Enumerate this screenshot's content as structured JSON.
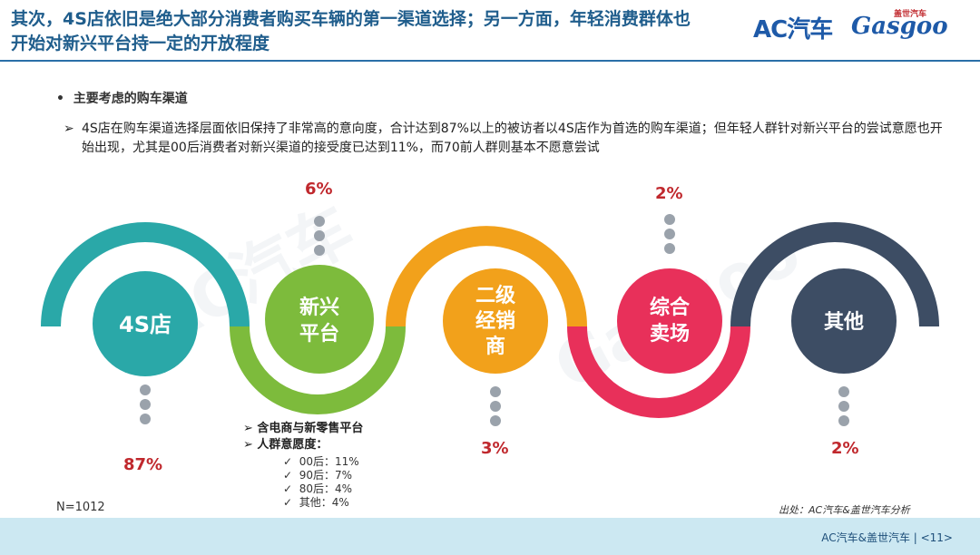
{
  "header": {
    "title": "其次，4S店依旧是绝大部分消费者购买车辆的第一渠道选择；另一方面，年轻消费群体也开始对新兴平台持一定的开放程度",
    "logo_ac": "AC汽车",
    "logo_gasgoo": "Gasgoo",
    "logo_gasgoo_cn": "盖世汽车"
  },
  "section": {
    "heading": "主要考虑的购车渠道",
    "description": "4S店在购车渠道选择层面依旧保持了非常高的意向度，合计达到87%以上的被访者以4S店作为首选的购车渠道；但年轻人群针对新兴平台的尝试意愿也开始出现，尤其是00后消费者对新兴渠道的接受度已达到11%，而70前人群则基本不愿意尝试"
  },
  "channels": [
    {
      "label": "4S店",
      "pct": "87%",
      "color": "#2aa8a8"
    },
    {
      "label": "新兴平台",
      "line1": "新兴",
      "line2": "平台",
      "pct": "6%",
      "color": "#7dbb3c"
    },
    {
      "label": "二级经销商",
      "line1": "二级",
      "line2": "经销",
      "line3": "商",
      "pct": "3%",
      "color": "#f2a11b"
    },
    {
      "label": "综合卖场",
      "line1": "综合",
      "line2": "卖场",
      "pct": "2%",
      "color": "#e8305a"
    },
    {
      "label": "其他",
      "pct": "2%",
      "color": "#3d4d64"
    }
  ],
  "emerging_notes": {
    "item1": "含电商与新零售平台",
    "item2": "人群意愿度：",
    "checks": [
      "00后：11%",
      "90后：7%",
      "80后：4%",
      "其他：4%"
    ]
  },
  "sample": "N=1012",
  "source": "出处：AC汽车&盖世汽车分析",
  "footer": "AC汽车&盖世汽车 | <11>"
}
